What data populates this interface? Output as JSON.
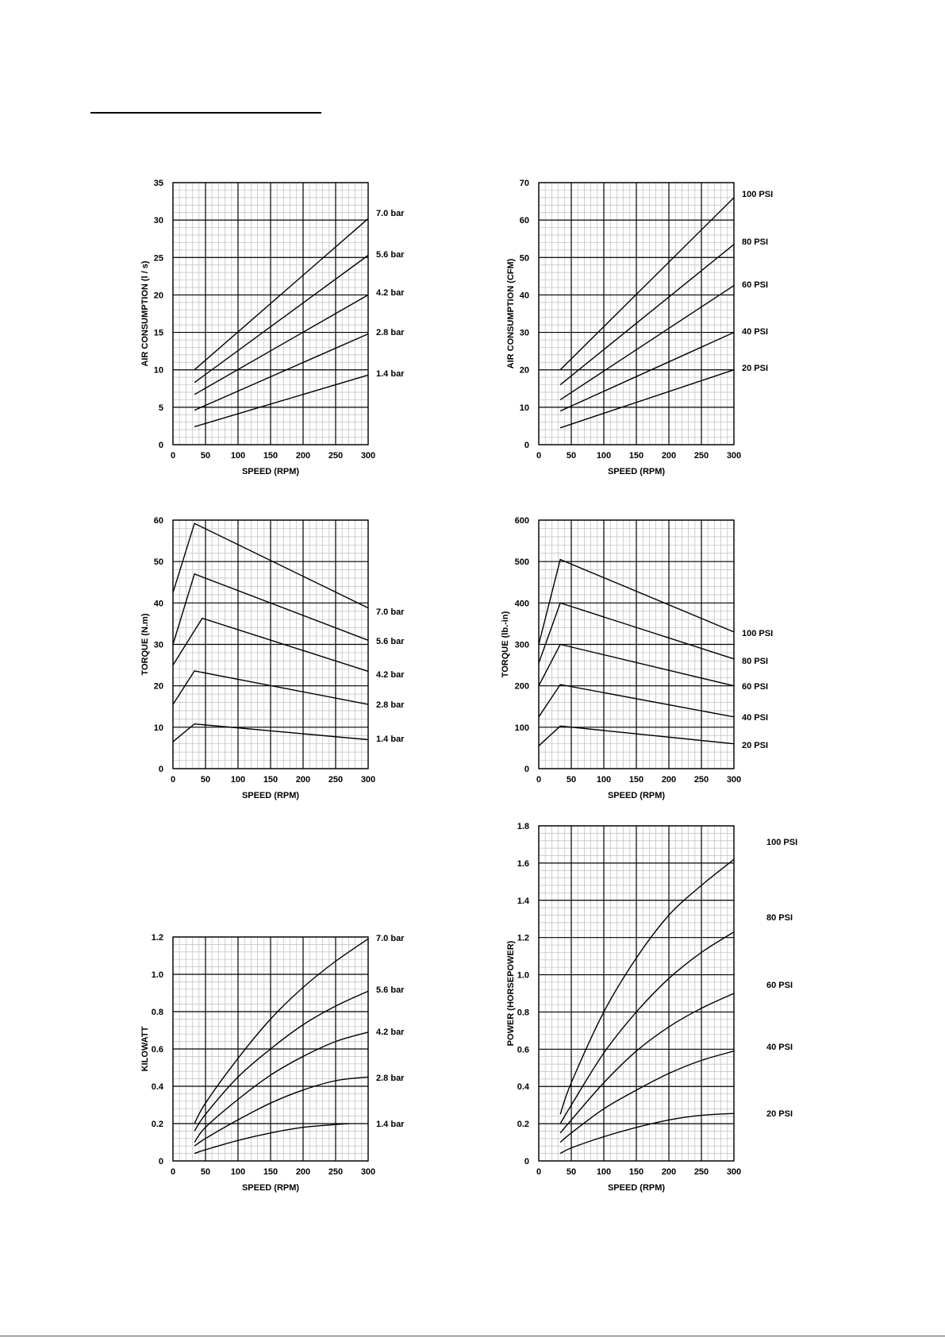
{
  "page": {
    "text_color": "#000000",
    "grid_minor_color": "#bdbdbd",
    "grid_major_color": "#000000"
  },
  "chart_data": [
    {
      "type": "line",
      "xlabel": "SPEED (RPM)",
      "ylabel": "AIR CONSUMPTION (l / s)",
      "xlim": [
        0,
        300
      ],
      "ylim": [
        0,
        35
      ],
      "xticks": [
        0,
        50,
        100,
        150,
        200,
        250,
        300
      ],
      "yticks": [
        0,
        5,
        10,
        15,
        20,
        25,
        30,
        35
      ],
      "grid": true,
      "series": [
        {
          "name": "7.0 bar",
          "x": [
            33,
            300
          ],
          "y": [
            10,
            30.2
          ]
        },
        {
          "name": "5.6 bar",
          "x": [
            33,
            300
          ],
          "y": [
            8.3,
            25.3
          ]
        },
        {
          "name": "4.2 bar",
          "x": [
            33,
            300
          ],
          "y": [
            6.7,
            20
          ]
        },
        {
          "name": "2.8 bar",
          "x": [
            33,
            300
          ],
          "y": [
            4.6,
            14.8
          ]
        },
        {
          "name": "1.4 bar",
          "x": [
            33,
            300
          ],
          "y": [
            2.4,
            9.3
          ]
        }
      ]
    },
    {
      "type": "line",
      "xlabel": "SPEED (RPM)",
      "ylabel": "AIR CONSUMPTION (CFM)",
      "xlim": [
        0,
        300
      ],
      "ylim": [
        0,
        70
      ],
      "xticks": [
        0,
        50,
        100,
        150,
        200,
        250,
        300
      ],
      "yticks": [
        0,
        10,
        20,
        30,
        40,
        50,
        60,
        70
      ],
      "grid": true,
      "series": [
        {
          "name": "100 PSI",
          "x": [
            33,
            300
          ],
          "y": [
            20,
            66
          ]
        },
        {
          "name": "80 PSI",
          "x": [
            33,
            300
          ],
          "y": [
            16,
            53.5
          ]
        },
        {
          "name": "60 PSI",
          "x": [
            33,
            300
          ],
          "y": [
            12,
            42.5
          ]
        },
        {
          "name": "40 PSI",
          "x": [
            33,
            300
          ],
          "y": [
            9,
            30
          ]
        },
        {
          "name": "20 PSI",
          "x": [
            33,
            300
          ],
          "y": [
            4.5,
            20
          ]
        }
      ]
    },
    {
      "type": "line",
      "xlabel": "SPEED (RPM)",
      "ylabel": "TORQUE (N.m)",
      "xlim": [
        0,
        300
      ],
      "ylim": [
        0,
        60
      ],
      "xticks": [
        0,
        50,
        100,
        150,
        200,
        250,
        300
      ],
      "yticks": [
        0,
        10,
        20,
        30,
        40,
        50,
        60
      ],
      "grid": true,
      "series": [
        {
          "name": "7.0 bar",
          "x": [
            0,
            33,
            300
          ],
          "y": [
            42.5,
            59.2,
            38.8
          ]
        },
        {
          "name": "5.6 bar",
          "x": [
            0,
            33,
            300
          ],
          "y": [
            30,
            47,
            31
          ]
        },
        {
          "name": "4.2 bar",
          "x": [
            0,
            45,
            300
          ],
          "y": [
            25,
            36.3,
            23.5
          ]
        },
        {
          "name": "2.8 bar",
          "x": [
            0,
            33,
            300
          ],
          "y": [
            15.5,
            23.6,
            15.5
          ]
        },
        {
          "name": "1.4 bar",
          "x": [
            0,
            33,
            300
          ],
          "y": [
            6.5,
            10.8,
            7
          ]
        }
      ]
    },
    {
      "type": "line",
      "xlabel": "SPEED (RPM)",
      "ylabel": "TORQUE (lb.-in)",
      "xlim": [
        0,
        300
      ],
      "ylim": [
        0,
        600
      ],
      "xticks": [
        0,
        50,
        100,
        150,
        200,
        250,
        300
      ],
      "yticks": [
        0,
        100,
        200,
        300,
        400,
        500,
        600
      ],
      "grid": true,
      "series": [
        {
          "name": "100 PSI",
          "x": [
            0,
            33,
            300
          ],
          "y": [
            300,
            505,
            330
          ]
        },
        {
          "name": "80 PSI",
          "x": [
            0,
            33,
            300
          ],
          "y": [
            255,
            400,
            265
          ]
        },
        {
          "name": "60 PSI",
          "x": [
            0,
            33,
            300
          ],
          "y": [
            200,
            300,
            200
          ]
        },
        {
          "name": "40 PSI",
          "x": [
            0,
            33,
            300
          ],
          "y": [
            125,
            203,
            125
          ]
        },
        {
          "name": "20 PSI",
          "x": [
            0,
            33,
            300
          ],
          "y": [
            55,
            103,
            60
          ]
        }
      ]
    },
    {
      "type": "line",
      "xlabel": "SPEED (RPM)",
      "ylabel": "KILOWATT",
      "xlim": [
        0,
        300
      ],
      "ylim": [
        0,
        1.2
      ],
      "xticks": [
        0,
        50,
        100,
        150,
        200,
        250,
        300
      ],
      "yticks": [
        0,
        0.2,
        0.4,
        0.6,
        0.8,
        1.0,
        1.2
      ],
      "ytick_labels": [
        "0",
        "0.2",
        "0.4",
        "0.6",
        "0.8",
        "1.0",
        "1.2"
      ],
      "grid": true,
      "series": [
        {
          "name": "7.0 bar",
          "x": [
            33,
            50,
            100,
            150,
            200,
            250,
            300
          ],
          "y": [
            0.2,
            0.31,
            0.55,
            0.76,
            0.93,
            1.07,
            1.19
          ]
        },
        {
          "name": "5.6 bar",
          "x": [
            33,
            50,
            100,
            150,
            200,
            250,
            300
          ],
          "y": [
            0.16,
            0.25,
            0.45,
            0.6,
            0.73,
            0.83,
            0.91
          ]
        },
        {
          "name": "4.2 bar",
          "x": [
            33,
            50,
            100,
            150,
            200,
            250,
            300
          ],
          "y": [
            0.1,
            0.18,
            0.33,
            0.46,
            0.56,
            0.64,
            0.69
          ]
        },
        {
          "name": "2.8 bar",
          "x": [
            33,
            50,
            100,
            150,
            200,
            250,
            300
          ],
          "y": [
            0.08,
            0.12,
            0.22,
            0.31,
            0.38,
            0.43,
            0.45
          ]
        },
        {
          "name": "1.4 bar",
          "x": [
            33,
            50,
            100,
            150,
            200,
            250,
            270
          ],
          "y": [
            0.04,
            0.06,
            0.11,
            0.15,
            0.18,
            0.195,
            0.2
          ]
        }
      ]
    },
    {
      "type": "line",
      "xlabel": "SPEED (RPM)",
      "ylabel": "POWER (HORSEPOWER)",
      "xlim": [
        0,
        300
      ],
      "ylim": [
        0,
        1.8
      ],
      "xticks": [
        0,
        50,
        100,
        150,
        200,
        250,
        300
      ],
      "yticks": [
        0,
        0.2,
        0.4,
        0.6,
        0.8,
        1.0,
        1.2,
        1.4,
        1.6,
        1.8
      ],
      "ytick_labels": [
        "0",
        "0.2",
        "0.4",
        "0.6",
        "0.8",
        "1.0",
        "1.2",
        "1.4",
        "1.6",
        "1.8"
      ],
      "grid": true,
      "series": [
        {
          "name": "100 PSI",
          "x": [
            33,
            50,
            100,
            150,
            200,
            250,
            300
          ],
          "y": [
            0.25,
            0.42,
            0.8,
            1.09,
            1.32,
            1.48,
            1.62
          ]
        },
        {
          "name": "80 PSI",
          "x": [
            33,
            50,
            100,
            150,
            200,
            250,
            300
          ],
          "y": [
            0.2,
            0.3,
            0.58,
            0.8,
            0.98,
            1.12,
            1.23
          ]
        },
        {
          "name": "60 PSI",
          "x": [
            33,
            50,
            100,
            150,
            200,
            250,
            300
          ],
          "y": [
            0.15,
            0.22,
            0.42,
            0.59,
            0.72,
            0.82,
            0.9
          ]
        },
        {
          "name": "40 PSI",
          "x": [
            33,
            50,
            100,
            150,
            200,
            250,
            300
          ],
          "y": [
            0.1,
            0.15,
            0.28,
            0.38,
            0.47,
            0.54,
            0.59
          ]
        },
        {
          "name": "20 PSI",
          "x": [
            33,
            50,
            100,
            150,
            200,
            250,
            300
          ],
          "y": [
            0.04,
            0.07,
            0.13,
            0.18,
            0.22,
            0.245,
            0.255
          ]
        }
      ]
    }
  ]
}
